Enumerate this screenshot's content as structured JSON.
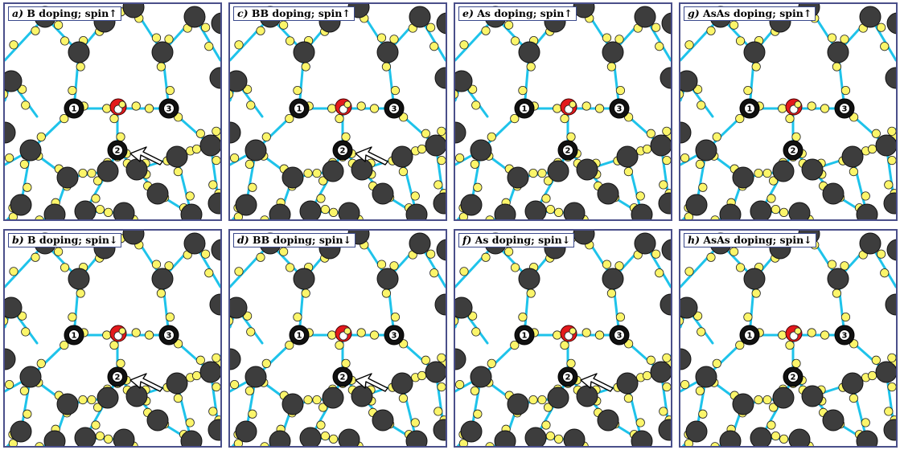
{
  "panels": [
    {
      "letter": "a)",
      "text": "B doping; spin↑",
      "arrow": "near-atom-2"
    },
    {
      "letter": "c)",
      "text": "BB doping; spin↑",
      "arrow": "near-atom-2"
    },
    {
      "letter": "e)",
      "text": "As doping; spin↑",
      "arrow": "none"
    },
    {
      "letter": "g)",
      "text": "AsAs doping; spin↑",
      "arrow": "none"
    },
    {
      "letter": "b)",
      "text": "B doping; spin↓",
      "arrow": "near-atom-2"
    },
    {
      "letter": "d)",
      "text": "BB doping; spin↓",
      "arrow": "near-atom-2"
    },
    {
      "letter": "f)",
      "text": "As doping; spin↓",
      "arrow": "near-atom-2"
    },
    {
      "letter": "h)",
      "text": "AsAs doping; spin↓",
      "arrow": "none"
    }
  ],
  "atom_numbers": [
    "1",
    "2",
    "3"
  ],
  "colors": {
    "bond": "#1ec3ea",
    "host_atom": "#3d3d3d",
    "charge_blob": "#fbf56a",
    "dopant": "#e3191c",
    "frame": "#4a4f8a"
  }
}
